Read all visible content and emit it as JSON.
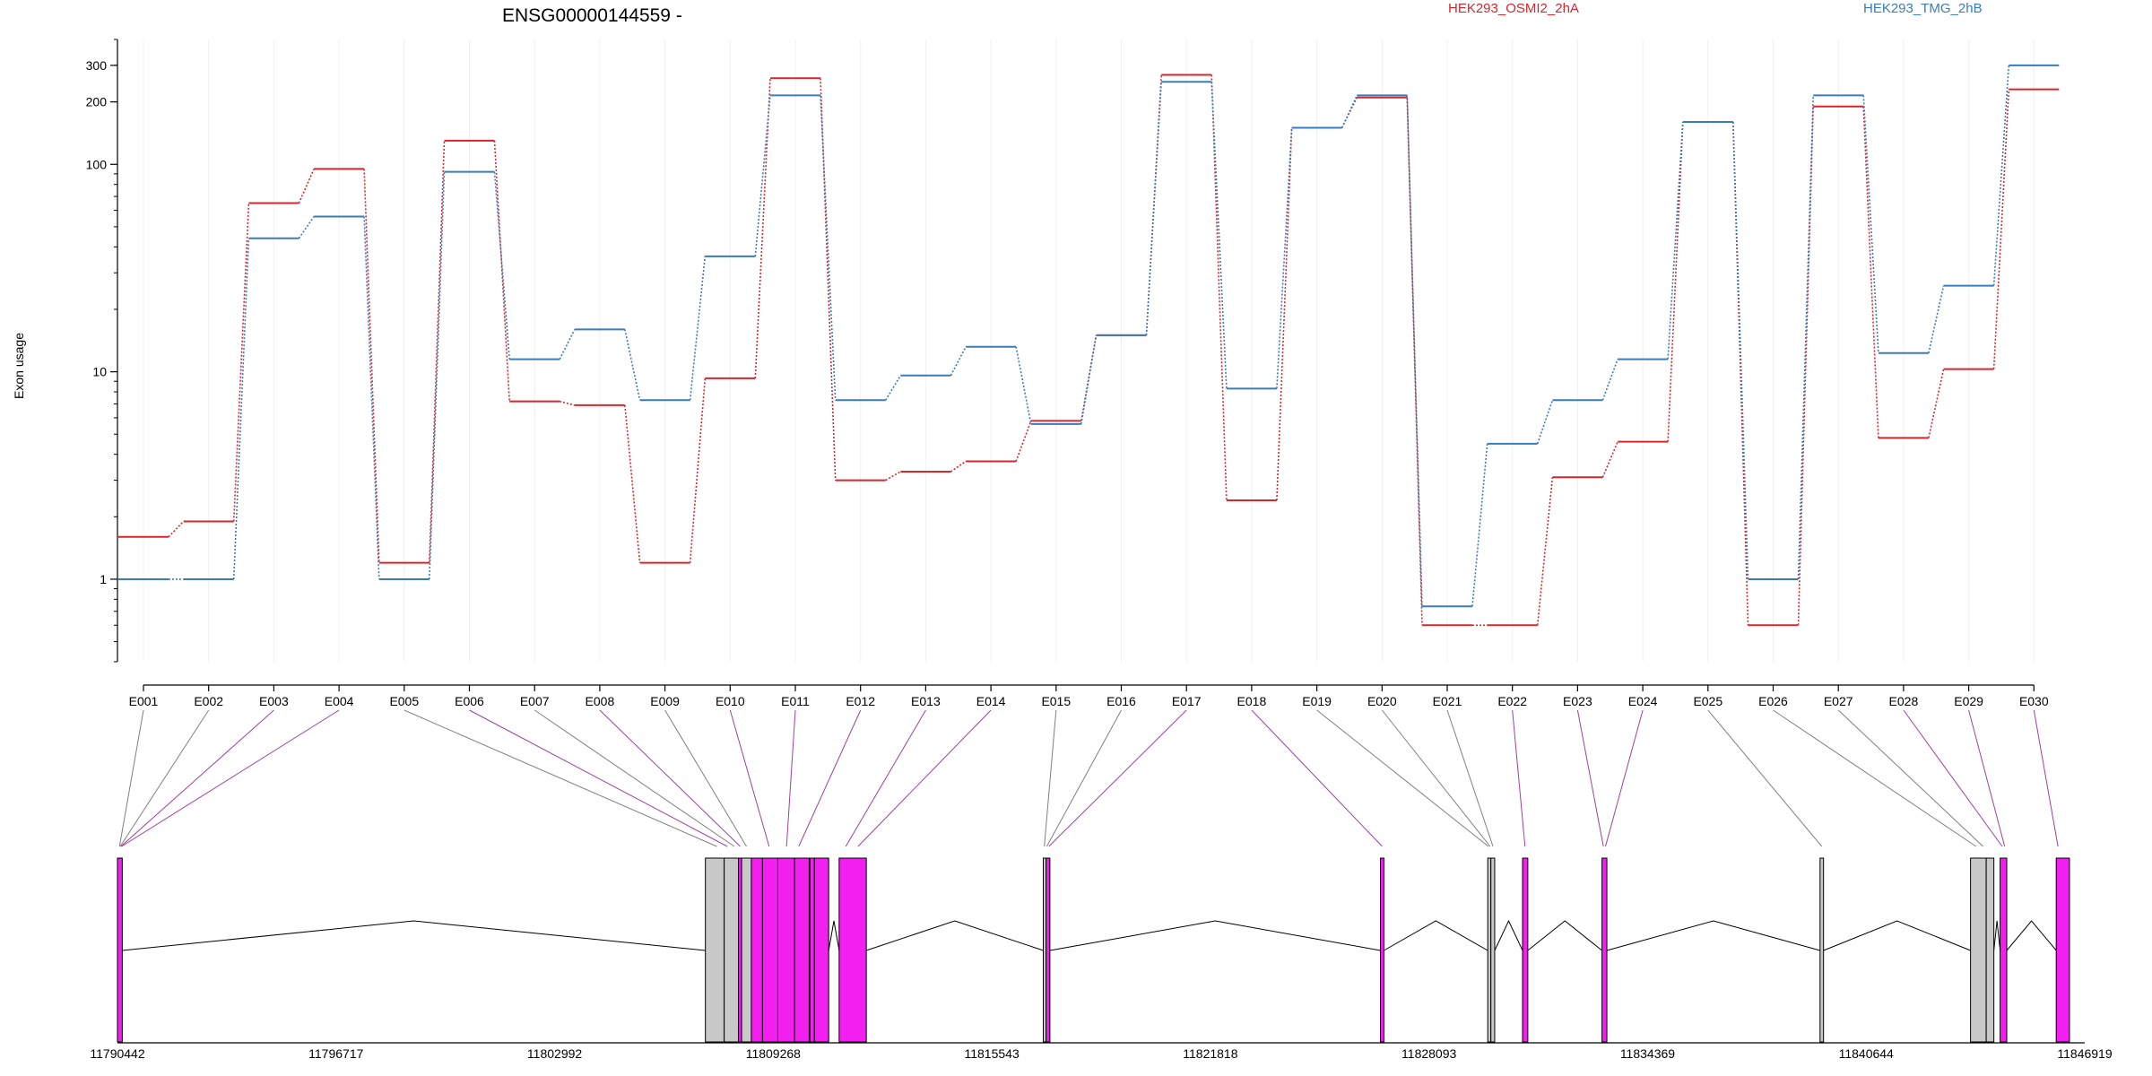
{
  "chart_data": {
    "type": "line",
    "title": "ENSG00000144559 -",
    "ylabel": "Exon usage",
    "xlabel": "",
    "y_scale": "log",
    "ylim": [
      0.4,
      400
    ],
    "y_ticks": [
      {
        "value": 1,
        "label": "1"
      },
      {
        "value": 10,
        "label": "10"
      },
      {
        "value": 100,
        "label": "100"
      },
      {
        "value": 200,
        "label": "200"
      },
      {
        "value": 300,
        "label": "300"
      }
    ],
    "grid": "vertical-light",
    "categories": [
      "E001",
      "E002",
      "E003",
      "E004",
      "E005",
      "E006",
      "E007",
      "E008",
      "E009",
      "E010",
      "E011",
      "E012",
      "E013",
      "E014",
      "E015",
      "E016",
      "E017",
      "E018",
      "E019",
      "E020",
      "E021",
      "E022",
      "E023",
      "E024",
      "E025",
      "E026",
      "E027",
      "E028",
      "E029",
      "E030"
    ],
    "series": [
      {
        "name": "HEK293_OSMI2_2hA",
        "color": "#d7262e",
        "values": [
          1.6,
          1.9,
          65,
          95,
          1.2,
          130,
          7.2,
          6.9,
          1.2,
          9.3,
          260,
          3.0,
          3.3,
          3.7,
          5.8,
          15,
          270,
          2.4,
          150,
          210,
          0.6,
          0.6,
          3.1,
          4.6,
          160,
          0.6,
          190,
          4.8,
          10.3,
          230
        ]
      },
      {
        "name": "HEK293_TMG_2hB",
        "color": "#3a7cb8",
        "values": [
          1.0,
          1.0,
          44,
          56,
          1.0,
          92,
          11.5,
          16,
          7.3,
          36,
          215,
          7.3,
          9.6,
          13.2,
          5.6,
          15,
          250,
          8.3,
          150,
          215,
          0.74,
          4.5,
          7.3,
          11.5,
          160,
          1.0,
          215,
          12.3,
          26,
          300
        ]
      }
    ],
    "gene_model": {
      "coordinate_ticks": [
        "11790442",
        "11796717",
        "11802992",
        "11809268",
        "11815543",
        "11821818",
        "11828093",
        "11834369",
        "11840644",
        "11846919"
      ],
      "coordinate_range": [
        11790442,
        11846919
      ],
      "exons": [
        {
          "start": 11790442,
          "end": 11790580,
          "color": "#f21ff0"
        },
        {
          "start": 11807320,
          "end": 11807860,
          "color": "#c8c8c8"
        },
        {
          "start": 11807860,
          "end": 11808270,
          "color": "#c8c8c8"
        },
        {
          "start": 11808270,
          "end": 11808360,
          "color": "#f21ff0"
        },
        {
          "start": 11808360,
          "end": 11808640,
          "color": "#c8c8c8"
        },
        {
          "start": 11808640,
          "end": 11808960,
          "color": "#f21ff0"
        },
        {
          "start": 11808960,
          "end": 11809400,
          "color": "#f21ff0"
        },
        {
          "start": 11809400,
          "end": 11809880,
          "color": "#f21ff0"
        },
        {
          "start": 11809880,
          "end": 11810300,
          "color": "#f21ff0"
        },
        {
          "start": 11810320,
          "end": 11810450,
          "color": "#f21ff0"
        },
        {
          "start": 11810450,
          "end": 11810860,
          "color": "#f21ff0"
        },
        {
          "start": 11811160,
          "end": 11811940,
          "color": "#f21ff0"
        },
        {
          "start": 11817020,
          "end": 11817100,
          "color": "#c8c8c8"
        },
        {
          "start": 11817100,
          "end": 11817210,
          "color": "#f21ff0"
        },
        {
          "start": 11826700,
          "end": 11826800,
          "color": "#f21ff0"
        },
        {
          "start": 11829780,
          "end": 11829870,
          "color": "#c8c8c8"
        },
        {
          "start": 11829870,
          "end": 11829980,
          "color": "#c8c8c8"
        },
        {
          "start": 11830780,
          "end": 11830930,
          "color": "#f21ff0"
        },
        {
          "start": 11833060,
          "end": 11833200,
          "color": "#f21ff0"
        },
        {
          "start": 11839320,
          "end": 11839420,
          "color": "#c8c8c8"
        },
        {
          "start": 11843640,
          "end": 11844090,
          "color": "#c8c8c8"
        },
        {
          "start": 11844090,
          "end": 11844310,
          "color": "#c8c8c8"
        },
        {
          "start": 11844490,
          "end": 11844680,
          "color": "#f21ff0"
        },
        {
          "start": 11846100,
          "end": 11846480,
          "color": "#f21ff0"
        }
      ],
      "exon_links": [
        {
          "exon": "E001",
          "pos": 11790500,
          "color": "#808080"
        },
        {
          "exon": "E002",
          "pos": 11790520,
          "color": "#808080"
        },
        {
          "exon": "E003",
          "pos": 11790540,
          "color": "#a040a0"
        },
        {
          "exon": "E004",
          "pos": 11790560,
          "color": "#a040a0"
        },
        {
          "exon": "E005",
          "pos": 11807650,
          "color": "#808080"
        },
        {
          "exon": "E006",
          "pos": 11807950,
          "color": "#a040a0"
        },
        {
          "exon": "E007",
          "pos": 11808150,
          "color": "#808080"
        },
        {
          "exon": "E008",
          "pos": 11808320,
          "color": "#a040a0"
        },
        {
          "exon": "E009",
          "pos": 11808500,
          "color": "#808080"
        },
        {
          "exon": "E010",
          "pos": 11809150,
          "color": "#a040a0"
        },
        {
          "exon": "E011",
          "pos": 11809650,
          "color": "#a040a0"
        },
        {
          "exon": "E012",
          "pos": 11810000,
          "color": "#a040a0"
        },
        {
          "exon": "E013",
          "pos": 11811350,
          "color": "#a040a0"
        },
        {
          "exon": "E014",
          "pos": 11811700,
          "color": "#a040a0"
        },
        {
          "exon": "E015",
          "pos": 11817050,
          "color": "#808080"
        },
        {
          "exon": "E016",
          "pos": 11817120,
          "color": "#808080"
        },
        {
          "exon": "E017",
          "pos": 11817180,
          "color": "#a040a0"
        },
        {
          "exon": "E018",
          "pos": 11826750,
          "color": "#a040a0"
        },
        {
          "exon": "E019",
          "pos": 11829800,
          "color": "#808080"
        },
        {
          "exon": "E020",
          "pos": 11829850,
          "color": "#808080"
        },
        {
          "exon": "E021",
          "pos": 11829930,
          "color": "#808080"
        },
        {
          "exon": "E022",
          "pos": 11830850,
          "color": "#a040a0"
        },
        {
          "exon": "E023",
          "pos": 11833100,
          "color": "#a040a0"
        },
        {
          "exon": "E024",
          "pos": 11833160,
          "color": "#a040a0"
        },
        {
          "exon": "E025",
          "pos": 11839370,
          "color": "#808080"
        },
        {
          "exon": "E026",
          "pos": 11843800,
          "color": "#808080"
        },
        {
          "exon": "E027",
          "pos": 11844000,
          "color": "#808080"
        },
        {
          "exon": "E028",
          "pos": 11844550,
          "color": "#a040a0"
        },
        {
          "exon": "E029",
          "pos": 11844620,
          "color": "#a040a0"
        },
        {
          "exon": "E030",
          "pos": 11846150,
          "color": "#a040a0"
        }
      ],
      "intron_peaks": [
        {
          "from": 11790580,
          "to": 11807320
        },
        {
          "from": 11810860,
          "to": 11811160
        },
        {
          "from": 11811940,
          "to": 11817020
        },
        {
          "from": 11817210,
          "to": 11826700
        },
        {
          "from": 11826800,
          "to": 11829780
        },
        {
          "from": 11829980,
          "to": 11830780
        },
        {
          "from": 11830930,
          "to": 11833060
        },
        {
          "from": 11833200,
          "to": 11839320
        },
        {
          "from": 11839420,
          "to": 11843640
        },
        {
          "from": 11844310,
          "to": 11844490
        },
        {
          "from": 11844680,
          "to": 11846100
        }
      ]
    }
  }
}
